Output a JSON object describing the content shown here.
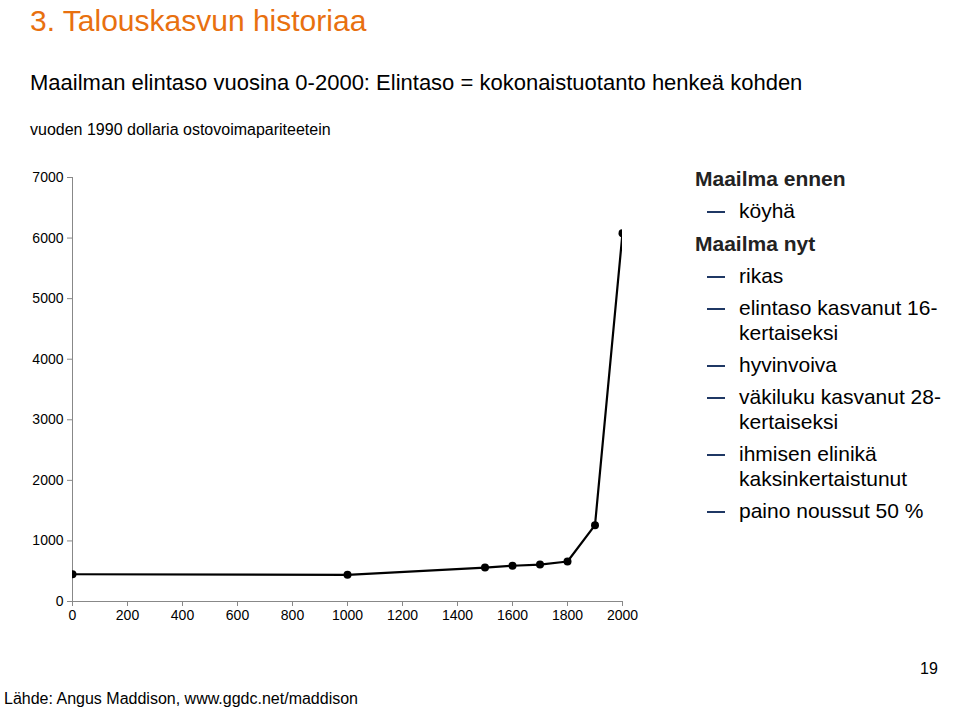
{
  "chart_data": {
    "type": "line",
    "title": "Maailman elintaso vuosina 0-2000: Elintaso = kokonaistuotanto henkeä kohden",
    "subtitle": "vuoden 1990 dollaria ostovoimapariteetein",
    "x": [
      0,
      1000,
      1500,
      1600,
      1700,
      1800,
      1900,
      2000
    ],
    "series": [
      {
        "name": "Elintaso",
        "color": "#000000",
        "values": [
          450,
          440,
          560,
          590,
          610,
          660,
          1260,
          6080
        ]
      }
    ],
    "marker": "circle",
    "xlim": [
      0,
      2000
    ],
    "xticks": [
      0,
      200,
      400,
      600,
      800,
      1000,
      1200,
      1400,
      1600,
      1800,
      2000
    ],
    "ylim": [
      0,
      7000
    ],
    "yticks": [
      0,
      1000,
      2000,
      3000,
      4000,
      5000,
      6000,
      7000
    ],
    "grid": false
  },
  "slide": {
    "heading": "3. Talouskasvun historiaa",
    "notes": [
      {
        "heading": "Maailma ennen",
        "items": [
          "köyhä"
        ]
      },
      {
        "heading": "Maailma nyt",
        "items": [
          "rikas",
          "elintaso kasvanut 16-kertaiseksi",
          "hyvinvoiva",
          "väkiluku kasvanut 28-kertaiseksi",
          "ihmisen elinikä kaksinkertaistunut",
          "paino noussut 50 %"
        ]
      }
    ],
    "source": "Lähde: Angus Maddison, www.ggdc.net/maddison",
    "page": "19"
  }
}
